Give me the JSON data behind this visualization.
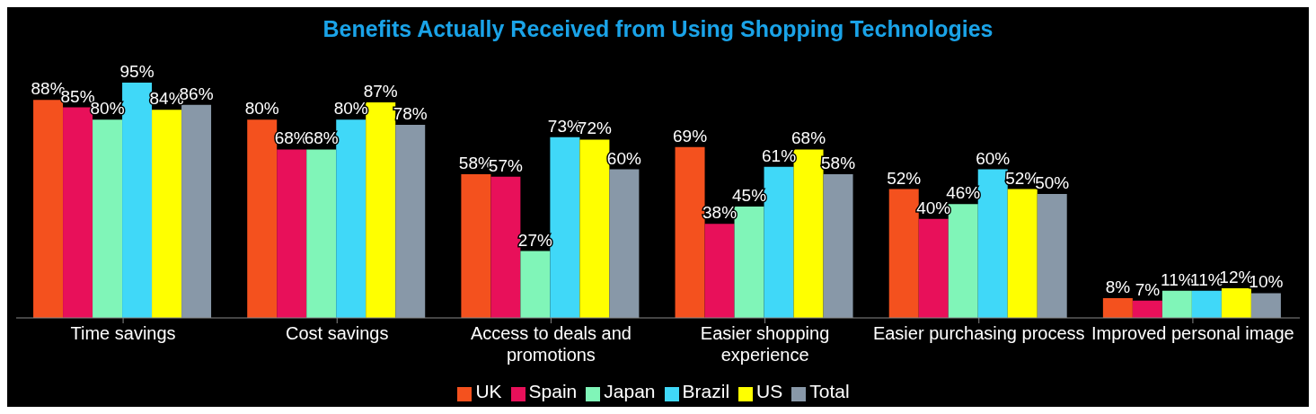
{
  "chart_data": {
    "type": "bar",
    "title": "Benefits Actually Received from Using Shopping Technologies",
    "categories": [
      "Time savings",
      "Cost savings",
      "Access to deals and promotions",
      "Easier shopping experience",
      "Easier purchasing process",
      "Improved personal image"
    ],
    "series": [
      {
        "name": "UK",
        "color": "#f4511e",
        "values": [
          88,
          80,
          58,
          69,
          52,
          8
        ],
        "value_labels": [
          "88%",
          "80%",
          "58%",
          "69%",
          "52%",
          "8%"
        ]
      },
      {
        "name": "Spain",
        "color": "#e8105a",
        "values": [
          85,
          68,
          57,
          38,
          40,
          7
        ],
        "value_labels": [
          "85%",
          "68%",
          "57%",
          "38%",
          "40%",
          "7%"
        ]
      },
      {
        "name": "Japan",
        "color": "#80f5b8",
        "values": [
          80,
          68,
          27,
          45,
          46,
          11
        ],
        "value_labels": [
          "80%",
          "68%",
          "27%",
          "45%",
          "46%",
          "11%"
        ]
      },
      {
        "name": "Brazil",
        "color": "#40d8f8",
        "values": [
          95,
          80,
          73,
          61,
          60,
          11
        ],
        "value_labels": [
          "95%",
          "80%",
          "73%",
          "61%",
          "60%",
          "11%"
        ]
      },
      {
        "name": "US",
        "color": "#ffff00",
        "values": [
          84,
          87,
          72,
          68,
          52,
          12
        ],
        "value_labels": [
          "84%",
          "87%",
          "72%",
          "68%",
          "52%",
          "12%"
        ]
      },
      {
        "name": "Total",
        "color": "#8898a8",
        "values": [
          86,
          78,
          60,
          58,
          50,
          10
        ],
        "value_labels": [
          "86%",
          "78%",
          "60%",
          "58%",
          "50%",
          "10%"
        ]
      }
    ],
    "legend": "bottom",
    "grid": false
  }
}
